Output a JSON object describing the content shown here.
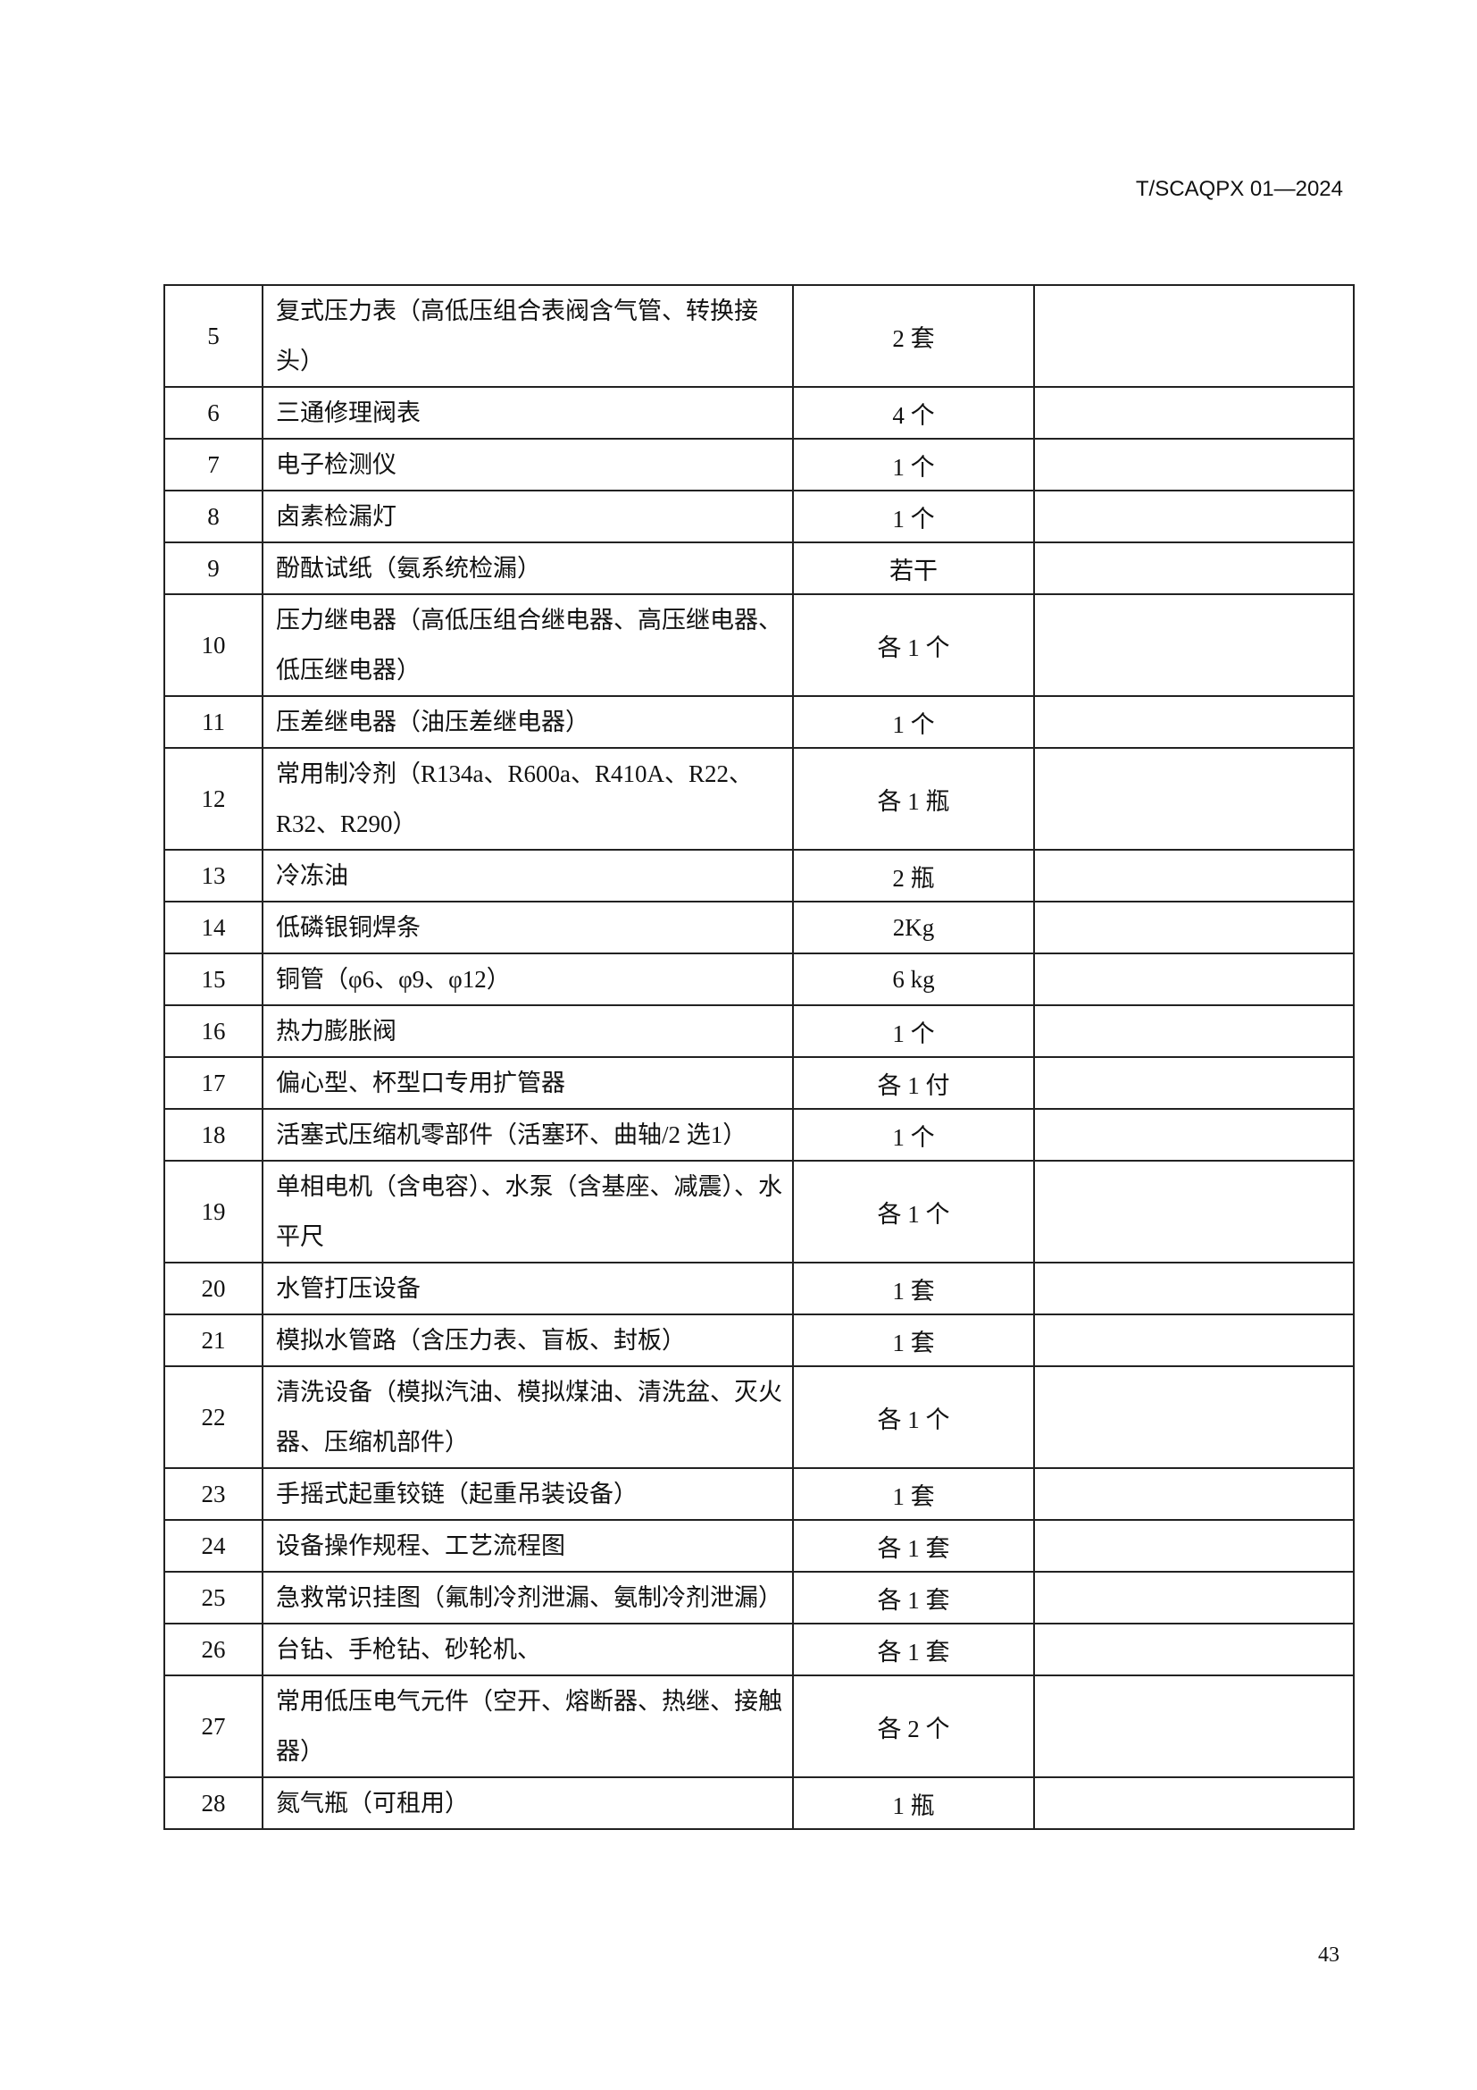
{
  "header": {
    "doc_code": "T/SCAQPX 01—2024"
  },
  "page_number": "43",
  "table": {
    "rows": [
      {
        "no": "5",
        "name": "复式压力表（高低压组合表阀含气管、转换接头）",
        "qty": "2 套",
        "remark": ""
      },
      {
        "no": "6",
        "name": "三通修理阀表",
        "qty": "4 个",
        "remark": ""
      },
      {
        "no": "7",
        "name": "电子检测仪",
        "qty": "1 个",
        "remark": ""
      },
      {
        "no": "8",
        "name": "卤素检漏灯",
        "qty": "1 个",
        "remark": ""
      },
      {
        "no": "9",
        "name": "酚酞试纸（氨系统检漏）",
        "qty": "若干",
        "remark": ""
      },
      {
        "no": "10",
        "name": "压力继电器（高低压组合继电器、高压继电器、低压继电器）",
        "qty": "各 1 个",
        "remark": ""
      },
      {
        "no": "11",
        "name": "压差继电器（油压差继电器）",
        "qty": "1 个",
        "remark": ""
      },
      {
        "no": "12",
        "name": "常用制冷剂（R134a、R600a、R410A、R22、R32、R290）",
        "qty": "各 1 瓶",
        "remark": ""
      },
      {
        "no": "13",
        "name": "冷冻油",
        "qty": "2 瓶",
        "remark": ""
      },
      {
        "no": "14",
        "name": "低磷银铜焊条",
        "qty": "2Kg",
        "remark": ""
      },
      {
        "no": "15",
        "name": "铜管（φ6、φ9、φ12）",
        "qty": "6 kg",
        "remark": ""
      },
      {
        "no": "16",
        "name": "热力膨胀阀",
        "qty": "1 个",
        "remark": ""
      },
      {
        "no": "17",
        "name": "偏心型、杯型口专用扩管器",
        "qty": "各 1 付",
        "remark": ""
      },
      {
        "no": "18",
        "name": "活塞式压缩机零部件（活塞环、曲轴/2 选1）",
        "qty": "1 个",
        "remark": ""
      },
      {
        "no": "19",
        "name": "单相电机（含电容）、水泵（含基座、减震）、水平尺",
        "qty": "各 1 个",
        "remark": ""
      },
      {
        "no": "20",
        "name": "水管打压设备",
        "qty": "1 套",
        "remark": ""
      },
      {
        "no": "21",
        "name": "模拟水管路（含压力表、盲板、封板）",
        "qty": "1 套",
        "remark": ""
      },
      {
        "no": "22",
        "name": "清洗设备（模拟汽油、模拟煤油、清洗盆、灭火器、压缩机部件）",
        "qty": "各 1 个",
        "remark": ""
      },
      {
        "no": "23",
        "name": "手摇式起重铰链（起重吊装设备）",
        "qty": "1 套",
        "remark": ""
      },
      {
        "no": "24",
        "name": "设备操作规程、工艺流程图",
        "qty": "各 1 套",
        "remark": ""
      },
      {
        "no": "25",
        "name": "急救常识挂图（氟制冷剂泄漏、氨制冷剂泄漏）",
        "qty": "各 1 套",
        "remark": ""
      },
      {
        "no": "26",
        "name": "台钻、手枪钻、砂轮机、",
        "qty": "各 1 套",
        "remark": ""
      },
      {
        "no": "27",
        "name": "常用低压电气元件（空开、熔断器、热继、接触器）",
        "qty": "各 2 个",
        "remark": ""
      },
      {
        "no": "28",
        "name": "氮气瓶（可租用）",
        "qty": "1 瓶",
        "remark": ""
      }
    ]
  }
}
